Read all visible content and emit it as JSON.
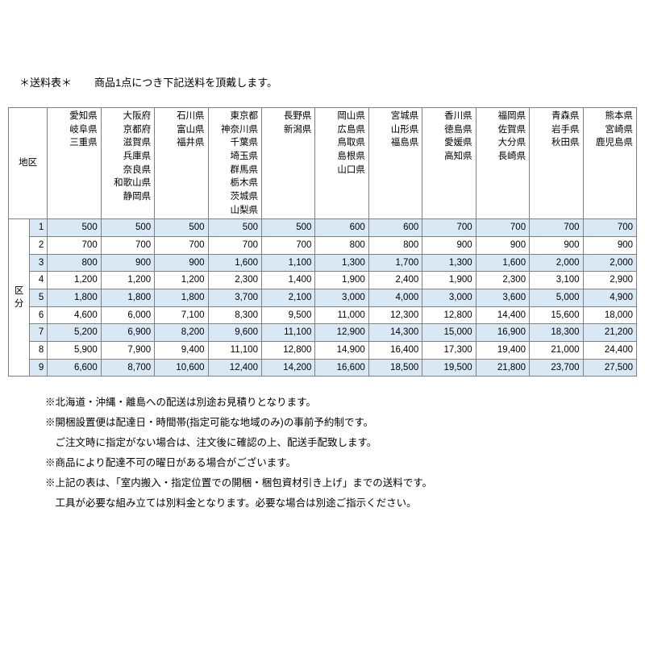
{
  "title": "＊送料表＊",
  "subtitle": "商品1点につき下記送料を頂戴します。",
  "region_label": "地区",
  "kubun_label": "区分",
  "columns": [
    "愛知県\n岐阜県\n三重県",
    "大阪府\n京都府\n滋賀県\n兵庫県\n奈良県\n和歌山県\n静岡県",
    "石川県\n富山県\n福井県",
    "東京都\n神奈川県\n千葉県\n埼玉県\n群馬県\n栃木県\n茨城県\n山梨県",
    "長野県\n新潟県",
    "岡山県\n広島県\n鳥取県\n島根県\n山口県",
    "宮城県\n山形県\n福島県",
    "香川県\n徳島県\n愛媛県\n高知県",
    "福岡県\n佐賀県\n大分県\n長崎県",
    "青森県\n岩手県\n秋田県",
    "熊本県\n宮崎県\n鹿児島県"
  ],
  "rows": [
    {
      "n": "1",
      "hl": true,
      "v": [
        "500",
        "500",
        "500",
        "500",
        "500",
        "600",
        "600",
        "700",
        "700",
        "700",
        "700"
      ]
    },
    {
      "n": "2",
      "hl": false,
      "v": [
        "700",
        "700",
        "700",
        "700",
        "700",
        "800",
        "800",
        "900",
        "900",
        "900",
        "900"
      ]
    },
    {
      "n": "3",
      "hl": true,
      "v": [
        "800",
        "900",
        "900",
        "1,600",
        "1,100",
        "1,300",
        "1,700",
        "1,300",
        "1,600",
        "2,000",
        "2,000"
      ]
    },
    {
      "n": "4",
      "hl": false,
      "v": [
        "1,200",
        "1,200",
        "1,200",
        "2,300",
        "1,400",
        "1,900",
        "2,400",
        "1,900",
        "2,300",
        "3,100",
        "2,900"
      ]
    },
    {
      "n": "5",
      "hl": true,
      "v": [
        "1,800",
        "1,800",
        "1,800",
        "3,700",
        "2,100",
        "3,000",
        "4,000",
        "3,000",
        "3,600",
        "5,000",
        "4,900"
      ]
    },
    {
      "n": "6",
      "hl": false,
      "v": [
        "4,600",
        "6,000",
        "7,100",
        "8,300",
        "9,500",
        "11,000",
        "12,300",
        "12,800",
        "14,400",
        "15,600",
        "18,000"
      ]
    },
    {
      "n": "7",
      "hl": true,
      "v": [
        "5,200",
        "6,900",
        "8,200",
        "9,600",
        "11,100",
        "12,900",
        "14,300",
        "15,000",
        "16,900",
        "18,300",
        "21,200"
      ]
    },
    {
      "n": "8",
      "hl": false,
      "v": [
        "5,900",
        "7,900",
        "9,400",
        "11,100",
        "12,800",
        "14,900",
        "16,400",
        "17,300",
        "19,400",
        "21,000",
        "24,400"
      ]
    },
    {
      "n": "9",
      "hl": true,
      "v": [
        "6,600",
        "8,700",
        "10,600",
        "12,400",
        "14,200",
        "16,600",
        "18,500",
        "19,500",
        "21,800",
        "23,700",
        "27,500"
      ]
    }
  ],
  "notes": [
    "※北海道・沖縄・離島への配送は別途お見積りとなります。",
    "※開梱設置便は配達日・時間帯(指定可能な地域のみ)の事前予約制です。",
    "　ご注文時に指定がない場合は、注文後に確認の上、配送手配致します。",
    "※商品により配達不可の曜日がある場合がございます。",
    "※上記の表は、「室内搬入・指定位置での開梱・梱包資材引き上げ」までの送料です。",
    "　工具が必要な組み立ては別料金となります。必要な場合は別途ご指示ください。"
  ],
  "colors": {
    "highlight": "#d9e8f5",
    "border": "#808080",
    "text": "#000000",
    "background": "#ffffff"
  }
}
